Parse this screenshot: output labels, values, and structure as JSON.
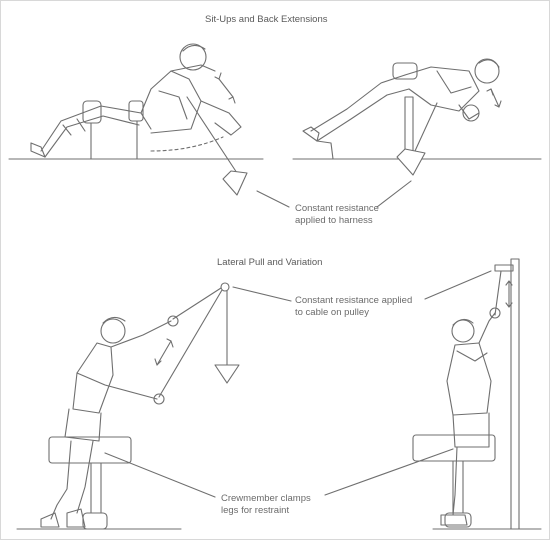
{
  "diagram": {
    "sections": [
      {
        "title": "Sit-Ups and Back Extensions"
      },
      {
        "title": "Lateral Pull and Variation"
      }
    ],
    "callouts": {
      "harness": [
        "Constant resistance",
        "applied to harness"
      ],
      "pulley": [
        "Constant resistance applied",
        "to cable on pulley"
      ],
      "clamps": [
        "Crewmember clamps",
        "legs for restraint"
      ]
    },
    "colors": {
      "ink": "#6b6b6b",
      "background": "#ffffff"
    }
  }
}
